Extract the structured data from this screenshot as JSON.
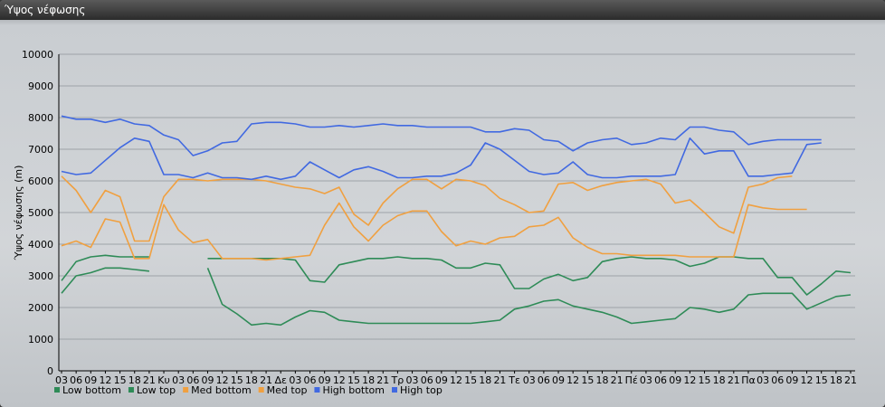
{
  "window": {
    "title": "Ύψος νέφωσης"
  },
  "chart_data": {
    "type": "line",
    "title": "",
    "xlabel": "",
    "ylabel": "Ύψος νέφωσης (m)",
    "ylim": [
      0,
      10000
    ],
    "yticks": [
      0,
      1000,
      2000,
      3000,
      4000,
      5000,
      6000,
      7000,
      8000,
      9000,
      10000
    ],
    "grid": "horizontal",
    "legend_position": "bottom-left",
    "x_labels": [
      "03",
      "06",
      "09",
      "12",
      "15",
      "18",
      "21",
      "Κυ",
      "03",
      "06",
      "09",
      "12",
      "15",
      "18",
      "21",
      "Δε",
      "03",
      "06",
      "09",
      "12",
      "15",
      "18",
      "21",
      "Τρ",
      "03",
      "06",
      "09",
      "12",
      "15",
      "18",
      "21",
      "Τε",
      "03",
      "06",
      "09",
      "12",
      "15",
      "18",
      "21",
      "Πέ",
      "03",
      "06",
      "09",
      "12",
      "15",
      "18",
      "21",
      "Πα",
      "03",
      "06",
      "09",
      "12",
      "15",
      "18",
      "21"
    ],
    "series": [
      {
        "name": "Low bottom",
        "color": "#2e8b57",
        "values": [
          2450,
          3000,
          3100,
          3250,
          3250,
          3200,
          3150,
          null,
          null,
          null,
          3250,
          2100,
          1800,
          1450,
          1500,
          1450,
          1700,
          1900,
          1850,
          1600,
          1550,
          1500,
          1500,
          1500,
          1500,
          1500,
          1500,
          1500,
          1500,
          1550,
          1600,
          1950,
          2050,
          2200,
          2250,
          2050,
          1950,
          1850,
          1700,
          1500,
          1550,
          1600,
          1650,
          2000,
          1950,
          1850,
          1950,
          2400,
          2450,
          2450,
          2450,
          1950,
          2150,
          2350,
          2400
        ]
      },
      {
        "name": "Low top",
        "color": "#2e8b57",
        "values": [
          2850,
          3450,
          3600,
          3650,
          3600,
          3600,
          3600,
          null,
          null,
          null,
          3550,
          3550,
          3550,
          3550,
          3550,
          3550,
          3500,
          2850,
          2800,
          3350,
          3450,
          3550,
          3550,
          3600,
          3550,
          3550,
          3500,
          3250,
          3250,
          3400,
          3350,
          2600,
          2600,
          2900,
          3050,
          2850,
          2950,
          3450,
          3550,
          3600,
          3550,
          3550,
          3500,
          3300,
          3400,
          3600,
          3600,
          3550,
          3550,
          2950,
          2950,
          2400,
          2750,
          3150,
          3100
        ]
      },
      {
        "name": "Med bottom",
        "color": "#f0a040",
        "values": [
          3950,
          4100,
          3900,
          4800,
          4700,
          3550,
          3550,
          5250,
          4450,
          4050,
          4150,
          3550,
          3550,
          3550,
          3500,
          3550,
          3600,
          3650,
          4600,
          5300,
          4550,
          4100,
          4600,
          4900,
          5050,
          5050,
          4400,
          3950,
          4100,
          4000,
          4200,
          4250,
          4550,
          4600,
          4850,
          4200,
          3900,
          3700,
          3700,
          3650,
          3650,
          3650,
          3650,
          3600,
          3600,
          3600,
          3600,
          5250,
          5150,
          5100,
          5100,
          5100,
          null,
          null,
          null
        ]
      },
      {
        "name": "Med top",
        "color": "#f0a040",
        "values": [
          6150,
          5700,
          5000,
          5700,
          5500,
          4100,
          4100,
          5500,
          6050,
          6050,
          6000,
          6050,
          6050,
          6050,
          6000,
          5900,
          5800,
          5750,
          5600,
          5800,
          4950,
          4600,
          5300,
          5750,
          6050,
          6050,
          5750,
          6050,
          6000,
          5850,
          5450,
          5250,
          5000,
          5050,
          5900,
          5950,
          5700,
          5850,
          5950,
          6000,
          6050,
          5900,
          5300,
          5400,
          5000,
          4550,
          4350,
          5800,
          5900,
          6100,
          6150,
          null,
          null,
          null,
          null
        ]
      },
      {
        "name": "High bottom",
        "color": "#4169e1",
        "values": [
          6300,
          6200,
          6250,
          6650,
          7050,
          7350,
          7250,
          6200,
          6200,
          6100,
          6250,
          6100,
          6100,
          6050,
          6150,
          6050,
          6150,
          6600,
          6350,
          6100,
          6350,
          6450,
          6300,
          6100,
          6100,
          6150,
          6150,
          6250,
          6500,
          7200,
          7000,
          6650,
          6300,
          6200,
          6250,
          6600,
          6200,
          6100,
          6100,
          6150,
          6150,
          6150,
          6200,
          7350,
          6850,
          6950,
          6950,
          6150,
          6150,
          6200,
          6250,
          7150,
          7200,
          null,
          null
        ]
      },
      {
        "name": "High top",
        "color": "#4169e1",
        "values": [
          8050,
          7950,
          7950,
          7850,
          7950,
          7800,
          7750,
          7450,
          7300,
          6800,
          6950,
          7200,
          7250,
          7800,
          7850,
          7850,
          7800,
          7700,
          7700,
          7750,
          7700,
          7750,
          7800,
          7750,
          7750,
          7700,
          7700,
          7700,
          7700,
          7550,
          7550,
          7650,
          7600,
          7300,
          7250,
          6950,
          7200,
          7300,
          7350,
          7150,
          7200,
          7350,
          7300,
          7700,
          7700,
          7600,
          7550,
          7150,
          7250,
          7300,
          7300,
          7300,
          7300,
          null,
          null
        ]
      }
    ]
  }
}
